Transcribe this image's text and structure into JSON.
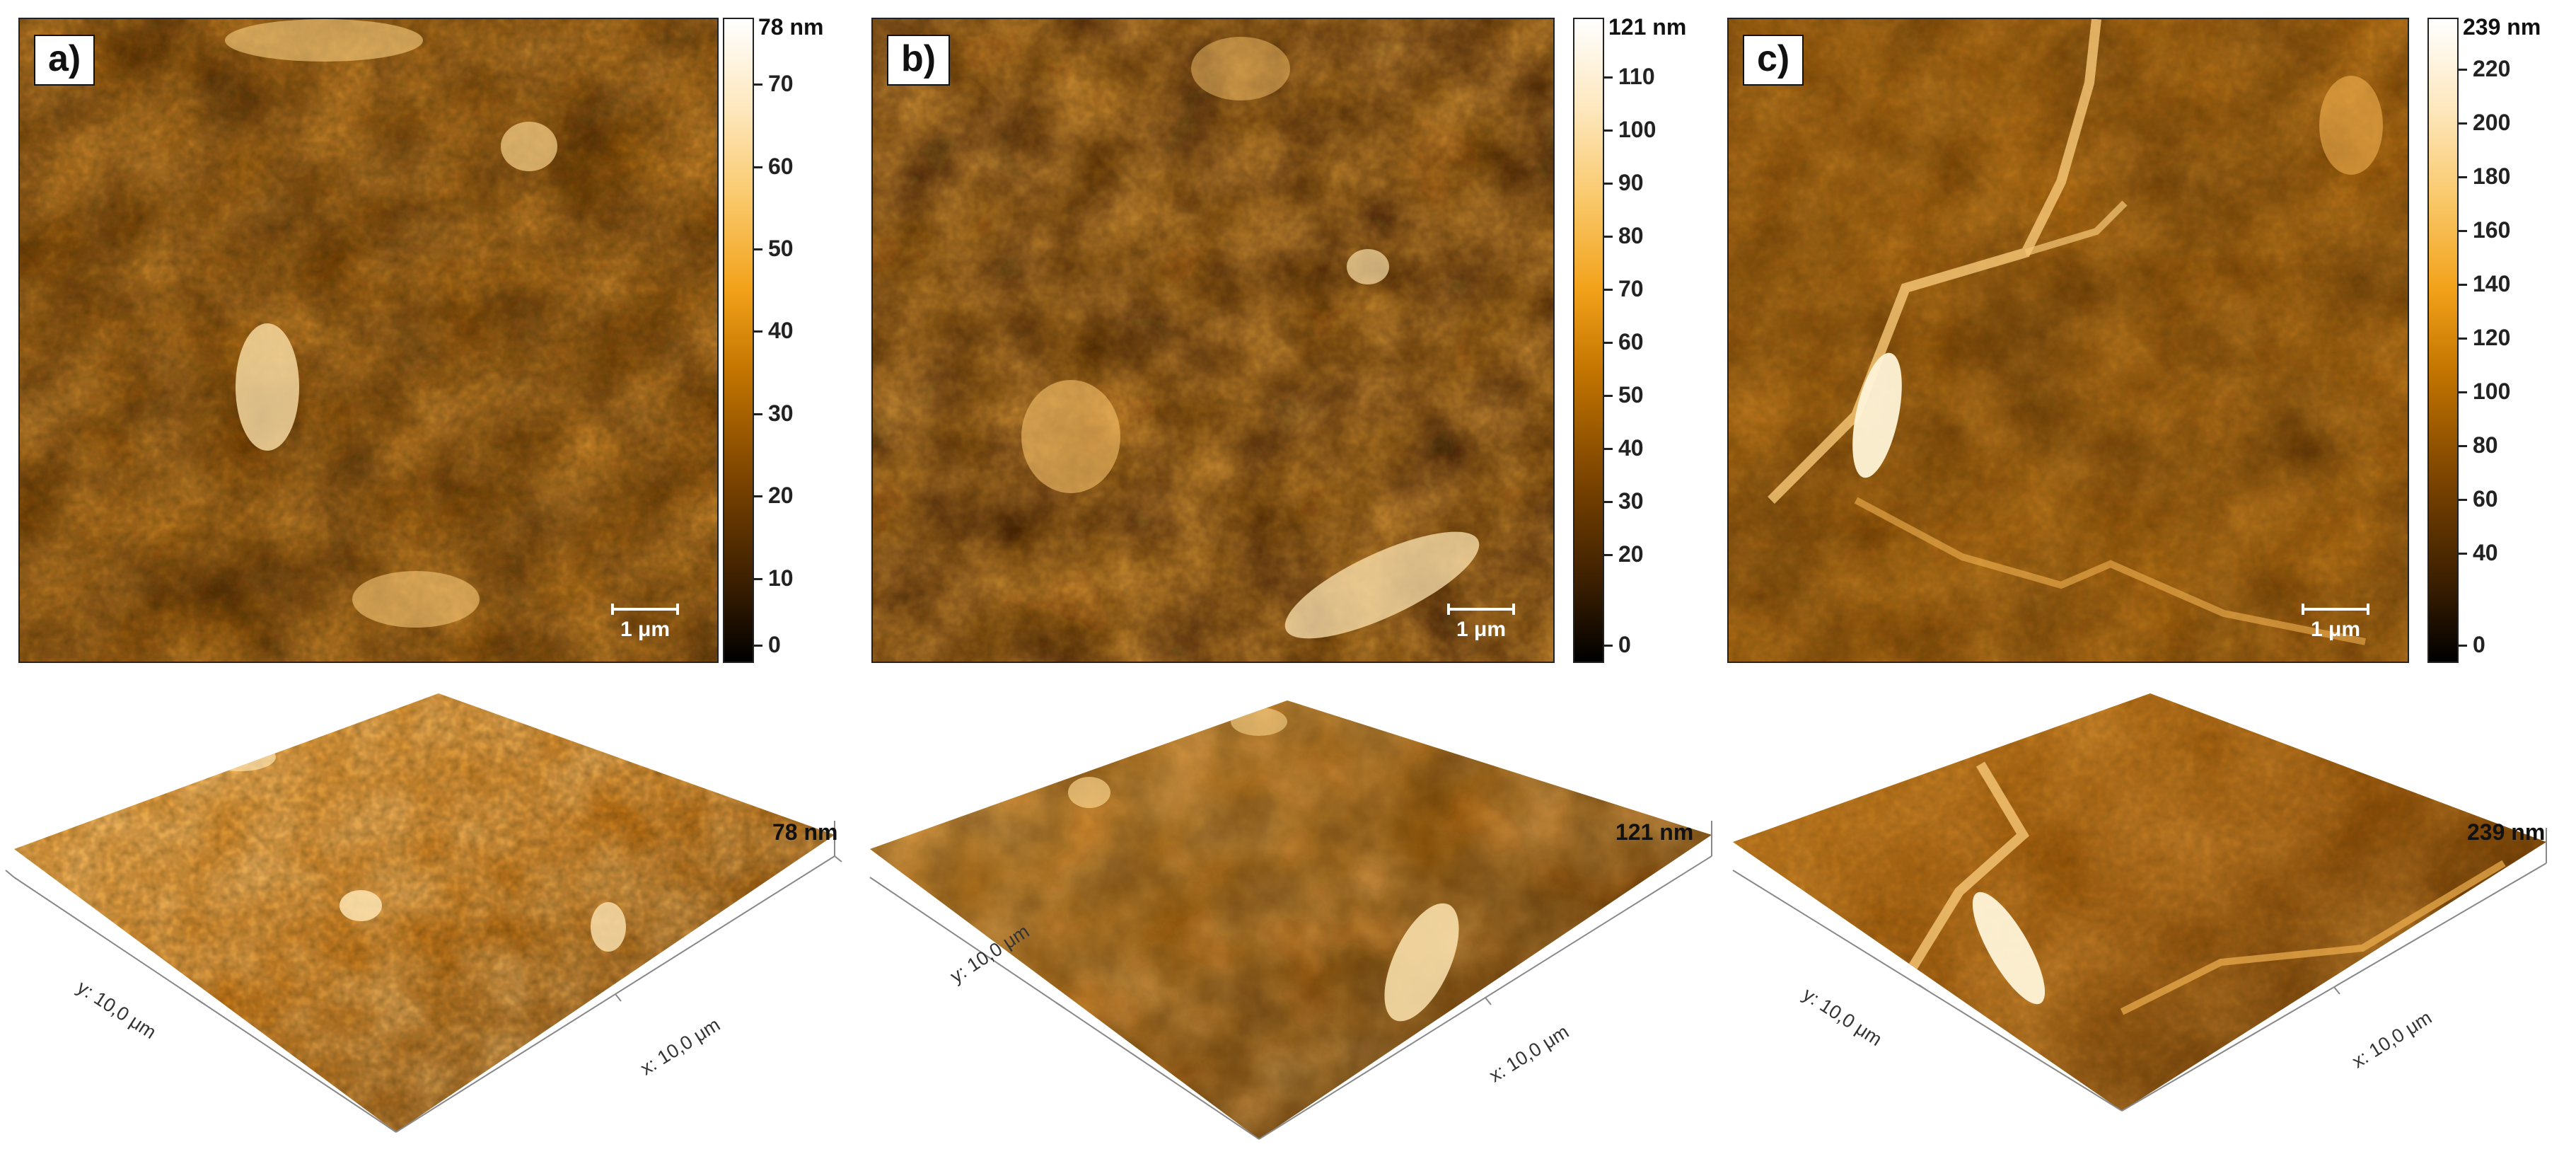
{
  "panels": [
    {
      "id": "a",
      "label": "a)",
      "scale_bar": "1 μm",
      "colorbar_ticks": [
        "0",
        "10",
        "20",
        "30",
        "40",
        "50",
        "60",
        "70"
      ],
      "colorbar_max": "78 nm",
      "colorbar_range_nm": [
        0,
        78
      ],
      "surface_max": "78 nm",
      "x_axis": "x: 10,0 μm",
      "y_axis": "y: 10,0 μm"
    },
    {
      "id": "b",
      "label": "b)",
      "scale_bar": "1 μm",
      "colorbar_ticks": [
        "0",
        "20",
        "30",
        "40",
        "50",
        "60",
        "70",
        "80",
        "90",
        "100",
        "110"
      ],
      "colorbar_max": "121 nm",
      "colorbar_range_nm": [
        0,
        121
      ],
      "surface_max": "121 nm",
      "x_axis": "x: 10,0 μm",
      "y_axis": "y: 10,0 μm"
    },
    {
      "id": "c",
      "label": "c)",
      "scale_bar": "1 μm",
      "colorbar_ticks": [
        "0",
        "40",
        "60",
        "80",
        "100",
        "120",
        "140",
        "160",
        "180",
        "200",
        "220"
      ],
      "colorbar_max": "239 nm",
      "colorbar_range_nm": [
        0,
        239
      ],
      "surface_max": "239 nm",
      "x_axis": "x: 10,0 μm",
      "y_axis": "y: 10,0 μm"
    }
  ],
  "colors": {
    "afm_dark": "#3a1e00",
    "afm_mid": "#c27400",
    "afm_light": "#fde7bd"
  }
}
